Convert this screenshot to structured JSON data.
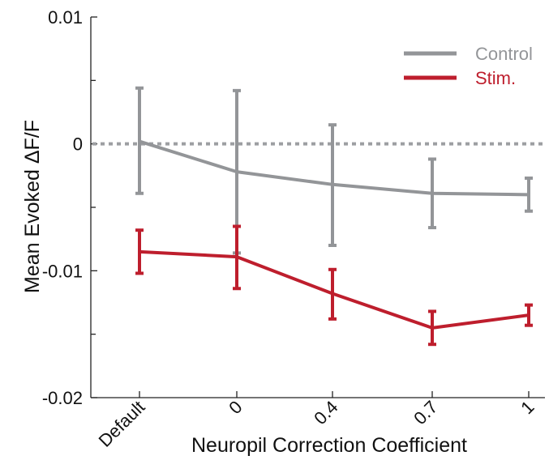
{
  "chart_data": {
    "type": "line",
    "title": "",
    "xlabel": "Neuropil Correction Coefficient",
    "ylabel": "Mean Evoked ΔF/F",
    "categories": [
      "Default",
      "0",
      "0.4",
      "0.7",
      "1"
    ],
    "ylim": [
      -0.02,
      0.01
    ],
    "yticks": [
      -0.02,
      -0.01,
      0,
      0.01
    ],
    "ytick_labels": [
      "-0.02",
      "-0.01",
      "0",
      "0.01"
    ],
    "reference_line": {
      "y": 0,
      "style": "dotted",
      "color": "#9d9fa2"
    },
    "grid": false,
    "legend": {
      "placement": "top-right"
    },
    "series": [
      {
        "name": "Control",
        "color": "#939598",
        "values": [
          0.0002,
          -0.0022,
          -0.0032,
          -0.0039,
          -0.004
        ],
        "err_low": [
          -0.0039,
          -0.0086,
          -0.008,
          -0.0066,
          -0.0053
        ],
        "err_high": [
          0.0044,
          0.0042,
          0.0015,
          -0.0012,
          -0.0027
        ]
      },
      {
        "name": "Stim.",
        "color": "#be1e2d",
        "values": [
          -0.0085,
          -0.0089,
          -0.0118,
          -0.0145,
          -0.0135
        ],
        "err_low": [
          -0.0102,
          -0.0114,
          -0.0138,
          -0.0158,
          -0.0143
        ],
        "err_high": [
          -0.0068,
          -0.0065,
          -0.0099,
          -0.0132,
          -0.0127
        ]
      }
    ]
  }
}
